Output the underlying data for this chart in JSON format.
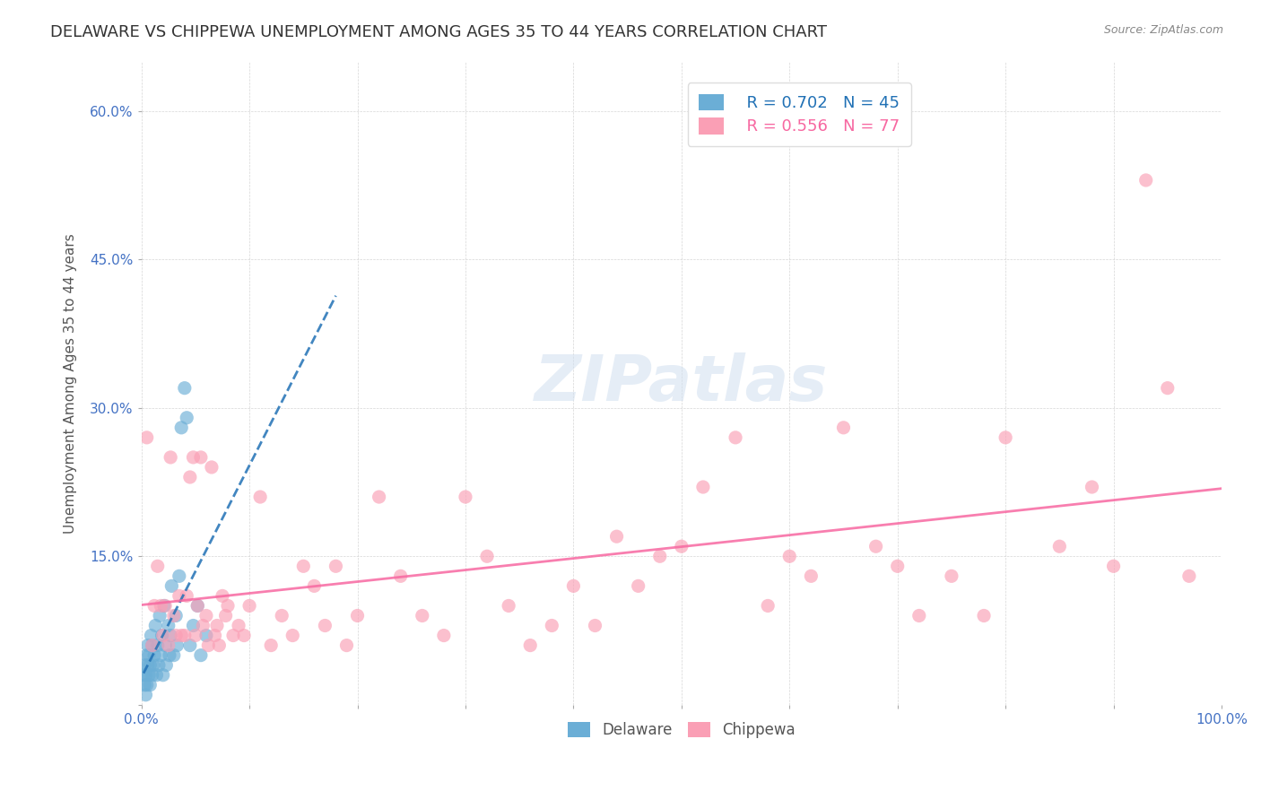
{
  "title": "DELAWARE VS CHIPPEWA UNEMPLOYMENT AMONG AGES 35 TO 44 YEARS CORRELATION CHART",
  "source": "Source: ZipAtlas.com",
  "xlabel": "",
  "ylabel": "Unemployment Among Ages 35 to 44 years",
  "xlim": [
    0.0,
    1.0
  ],
  "ylim": [
    0.0,
    0.65
  ],
  "xticks": [
    0.0,
    0.1,
    0.2,
    0.3,
    0.4,
    0.5,
    0.6,
    0.7,
    0.8,
    0.9,
    1.0
  ],
  "xticklabels": [
    "0.0%",
    "",
    "",
    "",
    "",
    "",
    "",
    "",
    "",
    "",
    "100.0%"
  ],
  "yticks": [
    0.0,
    0.15,
    0.3,
    0.45,
    0.6
  ],
  "yticklabels": [
    "",
    "15.0%",
    "30.0%",
    "45.0%",
    "60.0%"
  ],
  "delaware_R": "0.702",
  "delaware_N": "45",
  "chippewa_R": "0.556",
  "chippewa_N": "77",
  "delaware_color": "#6baed6",
  "chippewa_color": "#fa9fb5",
  "delaware_line_color": "#2171b5",
  "chippewa_line_color": "#f768a1",
  "background_color": "#ffffff",
  "watermark": "ZIPatlas",
  "title_fontsize": 13,
  "axis_label_fontsize": 11,
  "tick_fontsize": 11,
  "legend_fontsize": 13,
  "delaware_x": [
    0.002,
    0.003,
    0.003,
    0.004,
    0.004,
    0.005,
    0.005,
    0.006,
    0.006,
    0.007,
    0.007,
    0.008,
    0.008,
    0.009,
    0.01,
    0.01,
    0.011,
    0.012,
    0.013,
    0.014,
    0.015,
    0.016,
    0.017,
    0.018,
    0.019,
    0.02,
    0.021,
    0.022,
    0.023,
    0.025,
    0.026,
    0.027,
    0.028,
    0.03,
    0.032,
    0.033,
    0.035,
    0.037,
    0.04,
    0.042,
    0.045,
    0.048,
    0.052,
    0.055,
    0.06
  ],
  "delaware_y": [
    0.03,
    0.02,
    0.04,
    0.01,
    0.03,
    0.05,
    0.02,
    0.04,
    0.06,
    0.03,
    0.05,
    0.02,
    0.04,
    0.07,
    0.03,
    0.06,
    0.04,
    0.05,
    0.08,
    0.03,
    0.06,
    0.04,
    0.09,
    0.05,
    0.07,
    0.03,
    0.1,
    0.06,
    0.04,
    0.08,
    0.05,
    0.07,
    0.12,
    0.05,
    0.09,
    0.06,
    0.13,
    0.28,
    0.32,
    0.29,
    0.06,
    0.08,
    0.1,
    0.05,
    0.07
  ],
  "chippewa_x": [
    0.005,
    0.01,
    0.012,
    0.015,
    0.018,
    0.02,
    0.022,
    0.025,
    0.027,
    0.03,
    0.032,
    0.035,
    0.037,
    0.04,
    0.042,
    0.045,
    0.048,
    0.05,
    0.052,
    0.055,
    0.057,
    0.06,
    0.062,
    0.065,
    0.068,
    0.07,
    0.072,
    0.075,
    0.078,
    0.08,
    0.085,
    0.09,
    0.095,
    0.1,
    0.11,
    0.12,
    0.13,
    0.14,
    0.15,
    0.16,
    0.17,
    0.18,
    0.19,
    0.2,
    0.22,
    0.24,
    0.26,
    0.28,
    0.3,
    0.32,
    0.34,
    0.36,
    0.38,
    0.4,
    0.42,
    0.44,
    0.46,
    0.48,
    0.5,
    0.52,
    0.55,
    0.58,
    0.6,
    0.62,
    0.65,
    0.68,
    0.7,
    0.72,
    0.75,
    0.78,
    0.8,
    0.85,
    0.88,
    0.9,
    0.93,
    0.95,
    0.97
  ],
  "chippewa_y": [
    0.27,
    0.06,
    0.1,
    0.14,
    0.1,
    0.07,
    0.1,
    0.06,
    0.25,
    0.09,
    0.07,
    0.11,
    0.07,
    0.07,
    0.11,
    0.23,
    0.25,
    0.07,
    0.1,
    0.25,
    0.08,
    0.09,
    0.06,
    0.24,
    0.07,
    0.08,
    0.06,
    0.11,
    0.09,
    0.1,
    0.07,
    0.08,
    0.07,
    0.1,
    0.21,
    0.06,
    0.09,
    0.07,
    0.14,
    0.12,
    0.08,
    0.14,
    0.06,
    0.09,
    0.21,
    0.13,
    0.09,
    0.07,
    0.21,
    0.15,
    0.1,
    0.06,
    0.08,
    0.12,
    0.08,
    0.17,
    0.12,
    0.15,
    0.16,
    0.22,
    0.27,
    0.1,
    0.15,
    0.13,
    0.28,
    0.16,
    0.14,
    0.09,
    0.13,
    0.09,
    0.27,
    0.16,
    0.22,
    0.14,
    0.53,
    0.32,
    0.13
  ]
}
